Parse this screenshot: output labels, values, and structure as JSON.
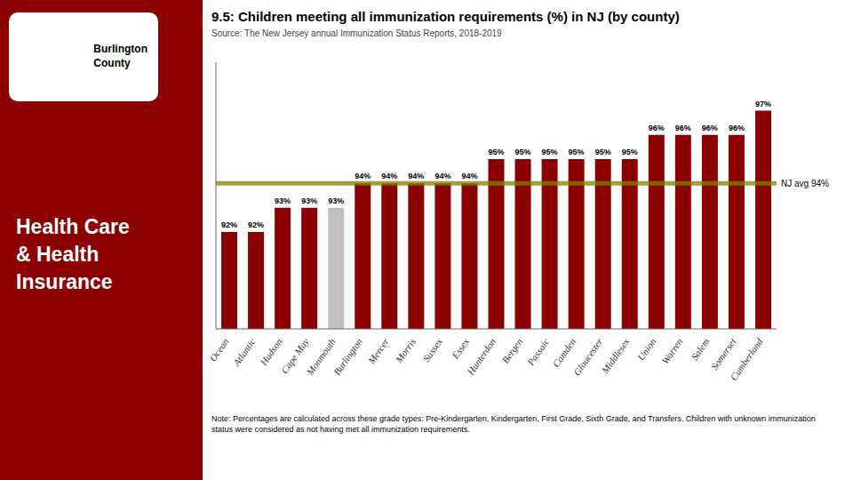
{
  "chart_data": {
    "type": "bar",
    "title": "9.5: Children meeting all immunization requirements (%) in NJ (by county)",
    "subtitle": "Source: The New Jersey annual Immunization Status Reports, 2018-2019",
    "categories": [
      "Ocean",
      "Atlantic",
      "Hudson",
      "Cape May",
      "Monmouth",
      "Burlington",
      "Mercer",
      "Morris",
      "Sussex",
      "Essex",
      "Hunterdon",
      "Bergen",
      "Passaic",
      "Camden",
      "Gloucester",
      "Middlesex",
      "Union",
      "Warren",
      "Salem",
      "Somerset",
      "Cumberland"
    ],
    "values": [
      92,
      92,
      93,
      93,
      93,
      94,
      94,
      94,
      94,
      94,
      95,
      95,
      95,
      95,
      95,
      95,
      96,
      96,
      96,
      96,
      97
    ],
    "value_labels": [
      "92%",
      "92%",
      "93%",
      "93%",
      "93%",
      "94%",
      "94%",
      "94%",
      "94%",
      "94%",
      "95%",
      "95%",
      "95%",
      "95%",
      "95%",
      "95%",
      "96%",
      "96%",
      "96%",
      "96%",
      "97%"
    ],
    "colors": [
      "#8B0000",
      "#8B0000",
      "#8B0000",
      "#8B0000",
      "#C0C0C0",
      "#8B0000",
      "#8B0000",
      "#8B0000",
      "#8B0000",
      "#8B0000",
      "#8B0000",
      "#8B0000",
      "#8B0000",
      "#8B0000",
      "#8B0000",
      "#8B0000",
      "#8B0000",
      "#8B0000",
      "#8B0000",
      "#8B0000",
      "#8B0000"
    ],
    "ylim": [
      88,
      99
    ],
    "data_labels": true,
    "tick_labels": "x",
    "grid": false,
    "annotations": [
      {
        "text": "NJ avg 94%",
        "y": 94,
        "color": "#808000"
      },
      {
        "text": "Note: Percentages are calculated across these grade types: Pre-Kindergarten, Kindergarten, First Grade, Sixth Grade, and Transfers. Children with unknown immunization status were considered as not having met all immunization requirements."
      },
      {
        "text": "Burlington\nCounty"
      },
      {
        "text": "Health Care\n& Health\nInsurance",
        "color": "#8B0000"
      }
    ]
  }
}
